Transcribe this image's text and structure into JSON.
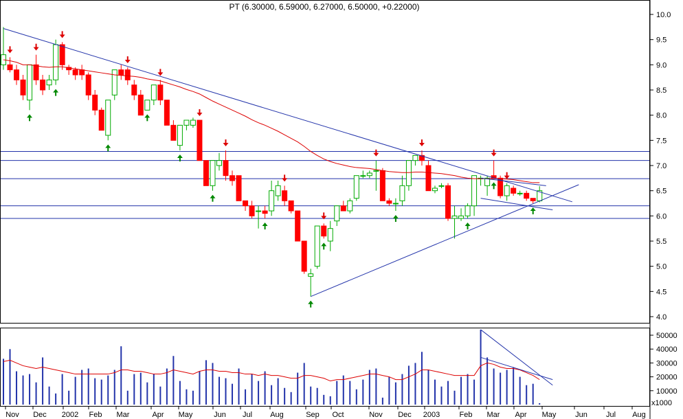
{
  "chart_data": [
    {
      "type": "candlestick",
      "title": "PT (6.30000, 6.59000, 6.27000, 6.50000, +0.22000)",
      "colors": {
        "up": "#ffffff",
        "down": "#ff0000",
        "up_border": "#00aa00",
        "down_border": "#ff0000",
        "ma": "#dd0000",
        "trend": "#2233aa",
        "up_arrow": "#008800",
        "down_arrow": "#dd0000"
      },
      "x_tick_labels": [
        "Nov",
        "Dec",
        "2002",
        "Feb",
        "Mar",
        "Apr",
        "May",
        "Jun",
        "Jul",
        "Aug",
        "Sep",
        "Oct",
        "Nov",
        "Dec",
        "2003",
        "Feb",
        "Mar",
        "Apr",
        "May",
        "Jun",
        "Jul",
        "Aug"
      ],
      "ylim": [
        3.8,
        10.2
      ],
      "y_ticks": [
        "10.0",
        "9.5",
        "9.0",
        "8.5",
        "8.0",
        "7.5",
        "7.0",
        "6.5",
        "6.0",
        "5.5",
        "5.0",
        "4.5",
        "4.0"
      ],
      "grid": false,
      "candles": [
        [
          9.0,
          9.75,
          8.9,
          9.2
        ],
        [
          9.0,
          9.15,
          8.85,
          8.9
        ],
        [
          8.9,
          9.0,
          8.6,
          8.7
        ],
        [
          8.7,
          8.8,
          8.3,
          8.4
        ],
        [
          8.3,
          9.0,
          8.1,
          9.0
        ],
        [
          9.0,
          9.2,
          8.6,
          8.7
        ],
        [
          8.7,
          8.8,
          8.4,
          8.5
        ],
        [
          8.6,
          8.8,
          8.5,
          8.7
        ],
        [
          8.7,
          9.5,
          8.6,
          9.4
        ],
        [
          9.4,
          9.45,
          8.9,
          9.0
        ],
        [
          8.95,
          9.0,
          8.8,
          8.9
        ],
        [
          8.9,
          8.95,
          8.7,
          8.8
        ],
        [
          8.9,
          9.0,
          8.7,
          8.8
        ],
        [
          8.8,
          8.85,
          8.3,
          8.4
        ],
        [
          8.4,
          8.5,
          8.0,
          8.1
        ],
        [
          8.1,
          8.15,
          7.7,
          7.7
        ],
        [
          7.6,
          8.3,
          7.5,
          8.3
        ],
        [
          8.4,
          8.9,
          8.3,
          8.9
        ],
        [
          8.9,
          9.0,
          8.7,
          8.8
        ],
        [
          8.9,
          8.95,
          8.6,
          8.7
        ],
        [
          8.6,
          8.7,
          8.3,
          8.4
        ],
        [
          8.4,
          8.5,
          8.0,
          8.0
        ],
        [
          8.1,
          8.3,
          8.1,
          8.3
        ],
        [
          8.3,
          8.6,
          8.2,
          8.6
        ],
        [
          8.6,
          8.7,
          8.2,
          8.3
        ],
        [
          8.3,
          8.3,
          7.8,
          7.8
        ],
        [
          7.8,
          7.9,
          7.5,
          7.5
        ],
        [
          7.4,
          7.8,
          7.3,
          7.8
        ],
        [
          7.8,
          7.9,
          7.7,
          7.9
        ],
        [
          7.8,
          7.95,
          7.75,
          7.9
        ],
        [
          7.9,
          7.9,
          7.1,
          7.1
        ],
        [
          7.1,
          7.1,
          6.6,
          6.6
        ],
        [
          6.6,
          7.1,
          6.5,
          7.1
        ],
        [
          7.0,
          7.25,
          6.9,
          7.1
        ],
        [
          7.1,
          7.3,
          6.7,
          6.8
        ],
        [
          6.8,
          6.9,
          6.6,
          6.7
        ],
        [
          6.8,
          6.8,
          6.3,
          6.3
        ],
        [
          6.3,
          6.3,
          6.1,
          6.2
        ],
        [
          6.2,
          6.3,
          5.95,
          6.0
        ],
        [
          6.1,
          6.2,
          5.75,
          6.1
        ],
        [
          6.1,
          6.2,
          5.95,
          6.05
        ],
        [
          6.1,
          6.7,
          6.0,
          6.5
        ],
        [
          6.4,
          6.7,
          6.3,
          6.6
        ],
        [
          6.5,
          6.6,
          6.2,
          6.3
        ],
        [
          6.3,
          6.3,
          6.05,
          6.1
        ],
        [
          6.1,
          6.1,
          5.5,
          5.5
        ],
        [
          5.5,
          5.5,
          4.85,
          4.9
        ],
        [
          4.8,
          4.95,
          4.4,
          4.85
        ],
        [
          5.0,
          5.8,
          4.95,
          5.8
        ],
        [
          5.8,
          5.85,
          5.55,
          5.6
        ],
        [
          5.5,
          5.9,
          5.3,
          5.75
        ],
        [
          5.9,
          6.2,
          5.8,
          6.2
        ],
        [
          6.2,
          6.3,
          6.1,
          6.1
        ],
        [
          6.1,
          6.35,
          6.05,
          6.3
        ],
        [
          6.35,
          6.8,
          6.3,
          6.8
        ],
        [
          6.8,
          6.9,
          6.75,
          6.8
        ],
        [
          6.8,
          6.9,
          6.75,
          6.85
        ],
        [
          6.9,
          7.1,
          6.5,
          6.9
        ],
        [
          6.9,
          6.95,
          6.3,
          6.3
        ],
        [
          6.3,
          6.35,
          6.2,
          6.25
        ],
        [
          6.25,
          6.35,
          6.1,
          6.25
        ],
        [
          6.3,
          6.8,
          6.2,
          6.6
        ],
        [
          6.6,
          7.1,
          6.5,
          7.1
        ],
        [
          7.1,
          7.2,
          7.0,
          7.2
        ],
        [
          7.2,
          7.3,
          7.0,
          7.1
        ],
        [
          7.0,
          7.1,
          6.5,
          6.5
        ],
        [
          6.5,
          6.6,
          6.45,
          6.55
        ],
        [
          6.6,
          6.65,
          6.55,
          6.6
        ],
        [
          6.6,
          6.65,
          5.9,
          5.95
        ],
        [
          5.95,
          6.2,
          5.55,
          6.0
        ],
        [
          5.95,
          6.15,
          5.9,
          6.0
        ],
        [
          6.0,
          6.25,
          5.95,
          6.2
        ],
        [
          6.2,
          6.8,
          6.0,
          6.8
        ],
        [
          6.75,
          6.8,
          6.6,
          6.75
        ],
        [
          6.6,
          6.8,
          6.4,
          6.75
        ],
        [
          6.8,
          7.1,
          6.75,
          6.75
        ],
        [
          6.75,
          6.8,
          6.35,
          6.4
        ],
        [
          6.4,
          6.65,
          6.3,
          6.6
        ],
        [
          6.55,
          6.6,
          6.4,
          6.45
        ],
        [
          6.45,
          6.5,
          6.4,
          6.45
        ],
        [
          6.45,
          6.5,
          6.3,
          6.35
        ],
        [
          6.35,
          6.35,
          6.25,
          6.3
        ],
        [
          6.3,
          6.59,
          6.27,
          6.5
        ]
      ],
      "moving_average": [
        9.1,
        9.08,
        9.05,
        9.0,
        9.0,
        8.98,
        8.96,
        8.95,
        8.96,
        8.96,
        8.94,
        8.92,
        8.9,
        8.88,
        8.86,
        8.84,
        8.82,
        8.8,
        8.79,
        8.78,
        8.77,
        8.75,
        8.72,
        8.7,
        8.68,
        8.64,
        8.6,
        8.56,
        8.51,
        8.47,
        8.42,
        8.35,
        8.28,
        8.22,
        8.16,
        8.1,
        8.04,
        7.98,
        7.91,
        7.85,
        7.8,
        7.74,
        7.68,
        7.61,
        7.54,
        7.47,
        7.38,
        7.28,
        7.2,
        7.13,
        7.08,
        7.04,
        7.01,
        6.98,
        6.96,
        6.95,
        6.94,
        6.92,
        6.9,
        6.88,
        6.87,
        6.86,
        6.86,
        6.87,
        6.87,
        6.86,
        6.85,
        6.84,
        6.82,
        6.8,
        6.77,
        6.75,
        6.74,
        6.74,
        6.74,
        6.74,
        6.74,
        6.73,
        6.72,
        6.7,
        6.68,
        6.66,
        6.66
      ],
      "horizontal_lines": [
        7.28,
        7.1,
        6.74,
        6.2,
        5.95
      ],
      "trendlines": [
        {
          "from": [
            0,
            9.72
          ],
          "to": [
            87,
            6.28
          ]
        },
        {
          "from": [
            47,
            4.4
          ],
          "to": [
            88,
            6.62
          ]
        },
        {
          "from": [
            73,
            6.75
          ],
          "to": [
            83,
            6.6
          ]
        },
        {
          "from": [
            73,
            6.35
          ],
          "to": [
            84,
            6.12
          ]
        }
      ],
      "up_arrows": [
        4,
        8,
        16,
        22,
        27,
        32,
        40,
        47,
        49,
        60,
        71,
        75,
        81
      ],
      "down_arrows": [
        1,
        5,
        9,
        19,
        24,
        30,
        34,
        43,
        49,
        57,
        64,
        75,
        77
      ]
    },
    {
      "type": "bar",
      "unit_label": "x1000",
      "ylim": [
        0,
        55000
      ],
      "y_ticks": [
        "50000",
        "40000",
        "30000",
        "20000",
        "10000"
      ],
      "values": [
        33000,
        40000,
        24000,
        21000,
        22000,
        16000,
        34000,
        13000,
        8000,
        22000,
        10000,
        20000,
        25000,
        26000,
        19000,
        18000,
        21000,
        25000,
        42000,
        10000,
        22000,
        23000,
        16000,
        22000,
        13000,
        26000,
        35000,
        17000,
        11000,
        10000,
        24000,
        32000,
        30000,
        20000,
        19000,
        15000,
        26000,
        11000,
        22000,
        17000,
        24000,
        14000,
        19000,
        12000,
        9000,
        23000,
        30000,
        13000,
        12000,
        7000,
        6000,
        17000,
        21000,
        17000,
        11000,
        18000,
        25000,
        26000,
        5000,
        20000,
        16000,
        22000,
        28000,
        30000,
        38000,
        25000,
        18000,
        13000,
        17000,
        10000,
        20000,
        22000,
        18000,
        54000,
        34000,
        26000,
        23000,
        25000,
        27000,
        20000,
        14000,
        15000,
        1000
      ],
      "moving_average": [
        31000,
        32000,
        30000,
        28000,
        27000,
        26000,
        27000,
        26000,
        25000,
        24000,
        23000,
        22000,
        22000,
        22000,
        22000,
        22000,
        22000,
        23000,
        25000,
        25000,
        24000,
        24000,
        23000,
        22000,
        22000,
        23000,
        25000,
        24000,
        23000,
        22000,
        24000,
        25000,
        25000,
        24000,
        24000,
        23000,
        23000,
        22000,
        22000,
        21000,
        22000,
        21000,
        21000,
        20000,
        19000,
        19000,
        21000,
        21000,
        20000,
        19000,
        17000,
        18000,
        18000,
        19000,
        20000,
        21000,
        22000,
        22000,
        21000,
        20000,
        18000,
        18000,
        20000,
        22000,
        25000,
        25000,
        24000,
        23000,
        22000,
        21000,
        21000,
        21000,
        21000,
        28000,
        30000,
        29000,
        27000,
        26000,
        26000,
        25000,
        23000,
        21000,
        18000
      ],
      "trendlines": [
        {
          "from": [
            73,
            54000
          ],
          "to": [
            84,
            14000
          ]
        },
        {
          "from": [
            73,
            34000
          ],
          "to": [
            84,
            18000
          ]
        }
      ]
    }
  ]
}
